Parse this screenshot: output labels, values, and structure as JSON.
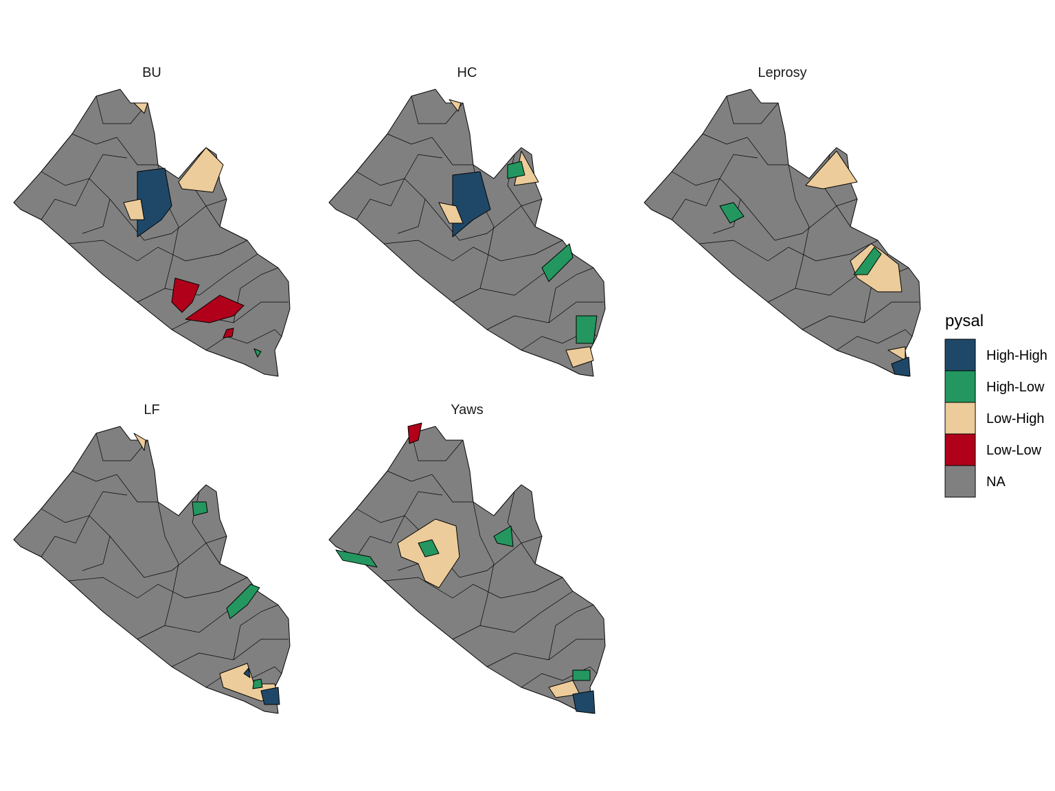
{
  "panels": [
    {
      "title": "BU"
    },
    {
      "title": "HC"
    },
    {
      "title": "Leprosy"
    },
    {
      "title": "LF"
    },
    {
      "title": "Yaws"
    }
  ],
  "legend": {
    "title": "pysal",
    "items": [
      {
        "label": "High-High",
        "color": "#1f4868"
      },
      {
        "label": "High-Low",
        "color": "#23975f"
      },
      {
        "label": "Low-High",
        "color": "#eccc9a"
      },
      {
        "label": "Low-Low",
        "color": "#b0001a"
      },
      {
        "label": "NA",
        "color": "#808080"
      }
    ]
  }
}
